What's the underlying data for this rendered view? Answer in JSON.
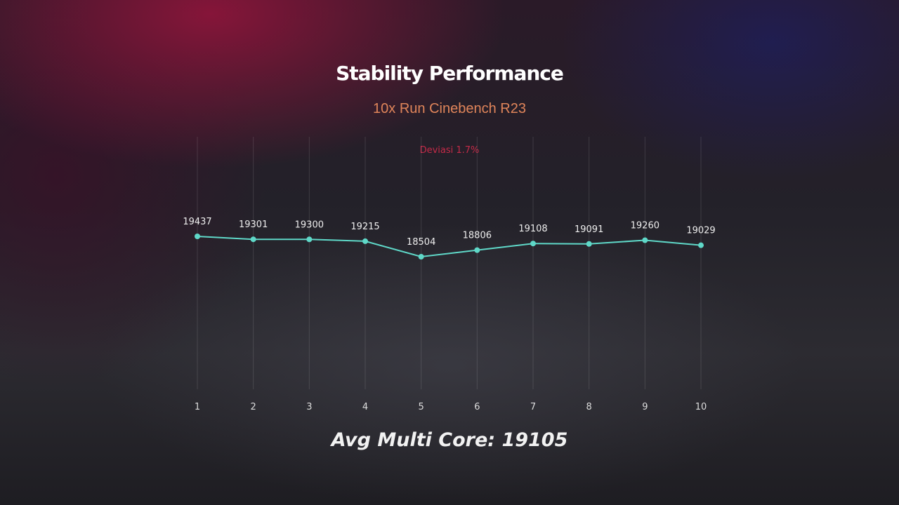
{
  "chart_data": {
    "type": "line",
    "title": "Stability Performance",
    "subtitle": "10x Run Cinebench R23",
    "annotation": "Deviasi 1.7%",
    "footer": "Avg Multi Core: 19105",
    "categories": [
      "1",
      "2",
      "3",
      "4",
      "5",
      "6",
      "7",
      "8",
      "9",
      "10"
    ],
    "values": [
      19437,
      19301,
      19300,
      19215,
      18504,
      18806,
      19108,
      19091,
      19260,
      19029
    ],
    "grid": "vertical",
    "legend": "none",
    "line_color": "#5fd8c8",
    "data_labels": true
  }
}
